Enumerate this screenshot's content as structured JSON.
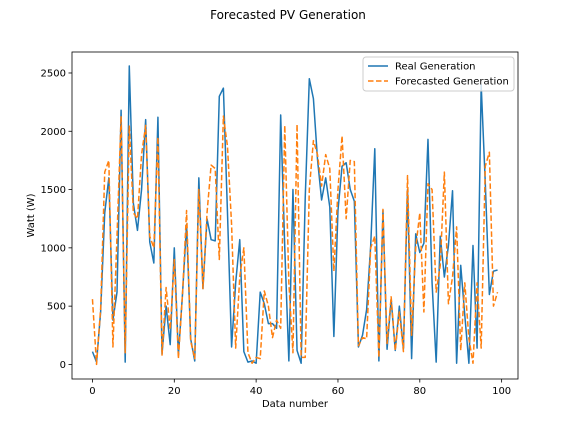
{
  "figure": {
    "title": "Forecasted PV Generation"
  },
  "chart_data": {
    "type": "line",
    "title": "Forecasted PV Generation",
    "xlabel": "Data number",
    "ylabel": "Watt (W)",
    "xlim": [
      -5,
      104
    ],
    "ylim": [
      -125,
      2680
    ],
    "xticks": [
      0,
      20,
      40,
      60,
      80,
      100
    ],
    "yticks": [
      0,
      500,
      1000,
      1500,
      2000,
      2500
    ],
    "grid": false,
    "legend_position": "top-right",
    "x": [
      0,
      1,
      2,
      3,
      4,
      5,
      6,
      7,
      8,
      9,
      10,
      11,
      12,
      13,
      14,
      15,
      16,
      17,
      18,
      19,
      20,
      21,
      22,
      23,
      24,
      25,
      26,
      27,
      28,
      29,
      30,
      31,
      32,
      33,
      34,
      35,
      36,
      37,
      38,
      39,
      40,
      41,
      42,
      43,
      44,
      45,
      46,
      47,
      48,
      49,
      50,
      51,
      52,
      53,
      54,
      55,
      56,
      57,
      58,
      59,
      60,
      61,
      62,
      63,
      64,
      65,
      66,
      67,
      68,
      69,
      70,
      71,
      72,
      73,
      74,
      75,
      76,
      77,
      78,
      79,
      80,
      81,
      82,
      83,
      84,
      85,
      86,
      87,
      88,
      89,
      90,
      91,
      92,
      93,
      94,
      95,
      96,
      97,
      98,
      99
    ],
    "series": [
      {
        "name": "Real Generation",
        "color": "#1f77b4",
        "style": "solid",
        "values": [
          110,
          20,
          450,
          1300,
          1600,
          380,
          620,
          2180,
          20,
          2560,
          1380,
          1150,
          1500,
          2100,
          1050,
          870,
          2120,
          90,
          500,
          170,
          1000,
          80,
          600,
          1200,
          220,
          30,
          1600,
          650,
          1250,
          1070,
          1060,
          2300,
          2370,
          1300,
          150,
          700,
          1070,
          110,
          20,
          30,
          10,
          620,
          520,
          350,
          350,
          310,
          2140,
          1000,
          30,
          1500,
          120,
          10,
          1430,
          2450,
          2280,
          1760,
          1410,
          1600,
          1350,
          240,
          1320,
          1700,
          1730,
          1500,
          1400,
          150,
          250,
          470,
          1020,
          1850,
          30,
          1320,
          130,
          560,
          120,
          500,
          130,
          1500,
          50,
          1120,
          960,
          1040,
          1930,
          700,
          20,
          1100,
          750,
          1020,
          1490,
          10,
          850,
          420,
          10,
          1020,
          140,
          2400,
          1560,
          600,
          800,
          810
        ]
      },
      {
        "name": "Forecasted Generation",
        "color": "#ff7f0e",
        "style": "dashed",
        "values": [
          560,
          0,
          480,
          1650,
          1750,
          150,
          1100,
          2130,
          100,
          2050,
          1300,
          1250,
          1800,
          2050,
          1100,
          1000,
          1950,
          80,
          660,
          300,
          900,
          50,
          600,
          1320,
          200,
          50,
          1500,
          650,
          1300,
          1710,
          1680,
          900,
          2130,
          1870,
          1200,
          140,
          750,
          1000,
          100,
          10,
          60,
          50,
          630,
          500,
          230,
          380,
          310,
          2050,
          700,
          100,
          2060,
          60,
          60,
          1500,
          1920,
          1800,
          1530,
          1800,
          1680,
          800,
          1500,
          1960,
          1250,
          1750,
          1740,
          160,
          230,
          220,
          1000,
          1100,
          60,
          1330,
          180,
          580,
          120,
          450,
          110,
          1620,
          250,
          1000,
          1300,
          450,
          1550,
          1500,
          620,
          850,
          1650,
          520,
          750,
          1180,
          120,
          700,
          220,
          10,
          700,
          140,
          1700,
          1820,
          500,
          620
        ]
      }
    ]
  }
}
